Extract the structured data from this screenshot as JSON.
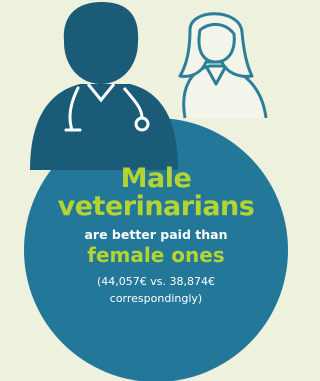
{
  "headline": {
    "line1": "Male",
    "line2": "veterinarians"
  },
  "middle": "are better paid than",
  "highlight": "female ones",
  "detail": {
    "line1": "(44,057€ vs. 38,874€",
    "line2": "correspondingly)"
  }
}
